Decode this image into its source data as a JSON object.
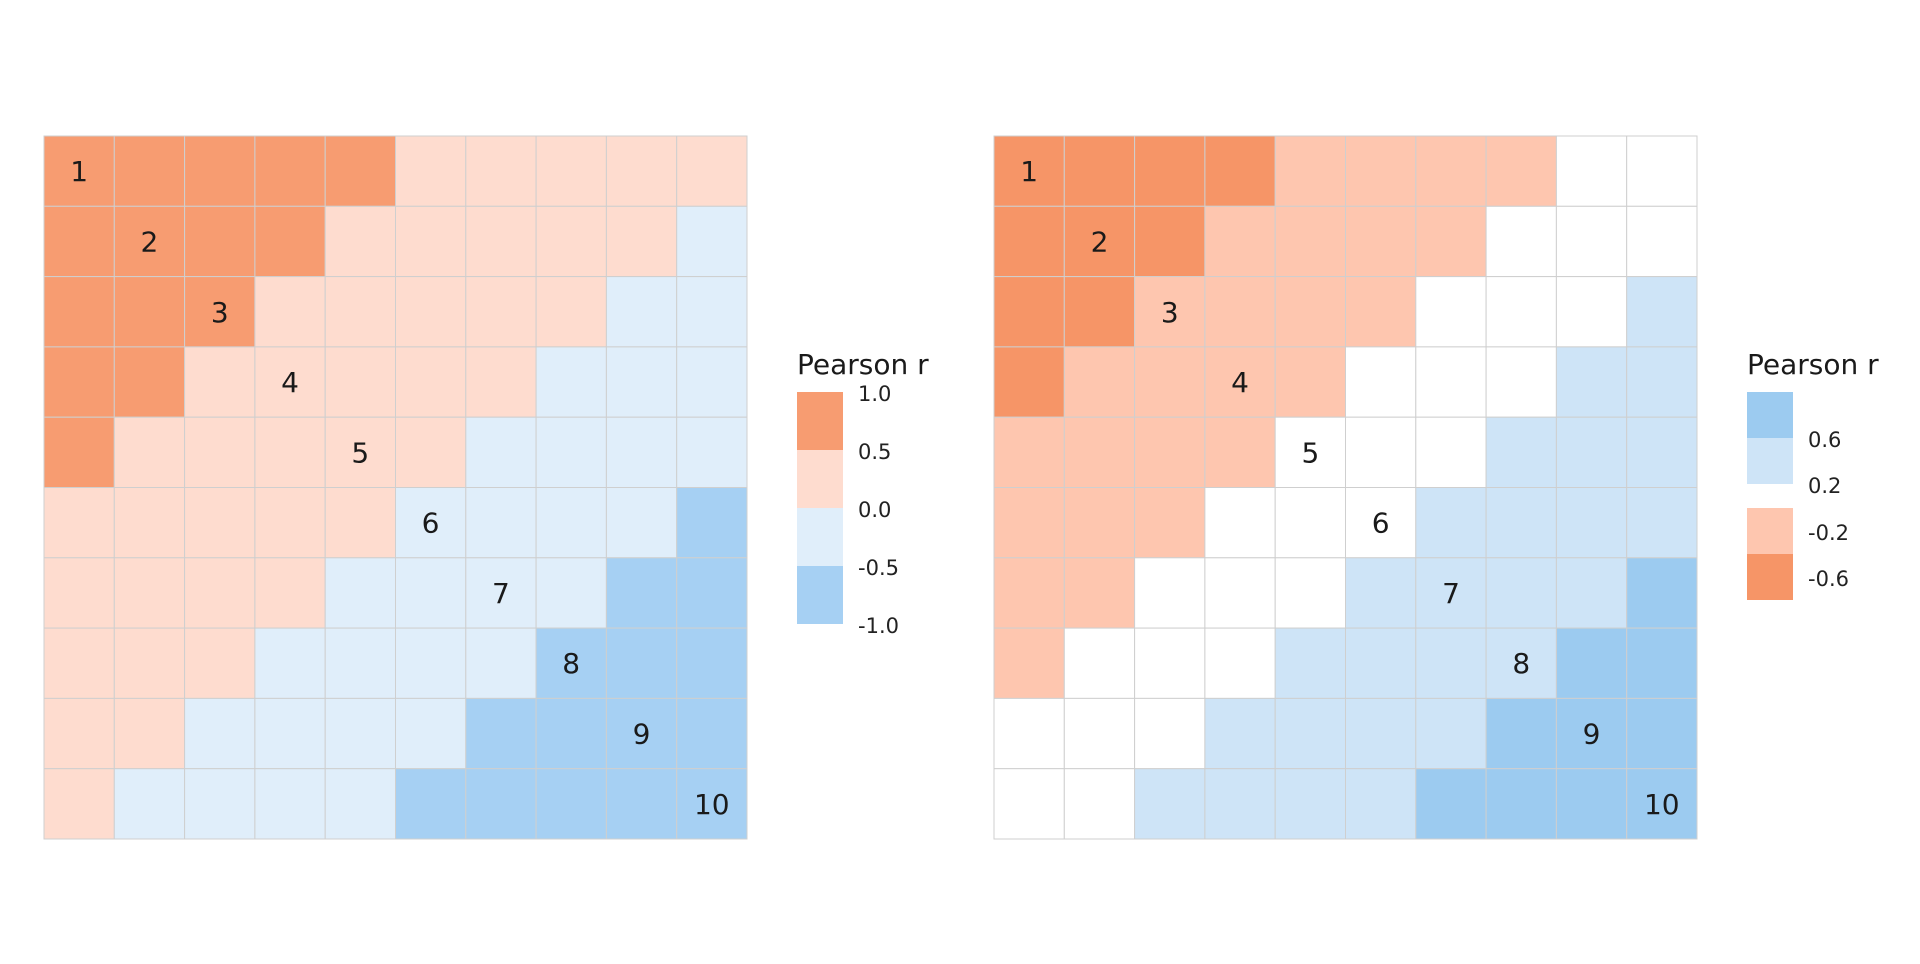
{
  "chart_data": [
    {
      "type": "heatmap",
      "title": "",
      "xlabel": "",
      "ylabel": "",
      "diagonal_labels": [
        "1",
        "2",
        "3",
        "4",
        "5",
        "6",
        "7",
        "8",
        "9",
        "10"
      ],
      "legend": {
        "title": "Pearson r",
        "labels": [
          "1.0",
          "0.5",
          "0.0",
          "-0.5",
          "-1.0"
        ],
        "bins": [
          {
            "range": "0.5 to 1.0",
            "color": "#F79C71"
          },
          {
            "range": "0.0 to 0.5",
            "color": "#FEDCCF"
          },
          {
            "range": "-0.5 to 0.0",
            "color": "#E0EEFA"
          },
          {
            "range": "-1.0 to -0.5",
            "color": "#A6D0F3"
          }
        ]
      },
      "matrix": [
        [
          0,
          0,
          0,
          0,
          0,
          1,
          1,
          1,
          1,
          1
        ],
        [
          0,
          0,
          0,
          0,
          1,
          1,
          1,
          1,
          1,
          2
        ],
        [
          0,
          0,
          0,
          1,
          1,
          1,
          1,
          1,
          2,
          2
        ],
        [
          0,
          0,
          1,
          1,
          1,
          1,
          1,
          2,
          2,
          2
        ],
        [
          0,
          1,
          1,
          1,
          1,
          1,
          2,
          2,
          2,
          2
        ],
        [
          1,
          1,
          1,
          1,
          1,
          2,
          2,
          2,
          2,
          3
        ],
        [
          1,
          1,
          1,
          1,
          2,
          2,
          2,
          2,
          3,
          3
        ],
        [
          1,
          1,
          1,
          2,
          2,
          2,
          2,
          3,
          3,
          3
        ],
        [
          1,
          1,
          2,
          2,
          2,
          2,
          3,
          3,
          3,
          3
        ],
        [
          1,
          2,
          2,
          2,
          2,
          3,
          3,
          3,
          3,
          3
        ]
      ],
      "matrix_note": "values are bin indices 0..3 into legend.bins (0 = -1.0 to -0.5, 3 = 0.5 to 1.0)"
    },
    {
      "type": "heatmap",
      "title": "",
      "xlabel": "",
      "ylabel": "",
      "diagonal_labels": [
        "1",
        "2",
        "3",
        "4",
        "5",
        "6",
        "7",
        "8",
        "9",
        "10"
      ],
      "legend": {
        "title": "Pearson r",
        "labels": [
          "0.6",
          "0.2",
          "-0.2",
          "-0.6"
        ],
        "bins": [
          {
            "range": "above 0.6",
            "color": "#F69567"
          },
          {
            "range": "0.2 to 0.6",
            "color": "#FEC6AF"
          },
          {
            "range": "-0.2 to 0.2",
            "color": "#FFFFFF"
          },
          {
            "range": "-0.6 to -0.2",
            "color": "#CEE4F7"
          },
          {
            "range": "below -0.6",
            "color": "#9CCBF0"
          }
        ]
      },
      "matrix": [
        [
          0,
          0,
          0,
          0,
          1,
          1,
          1,
          1,
          2,
          2
        ],
        [
          0,
          0,
          0,
          1,
          1,
          1,
          1,
          2,
          2,
          2
        ],
        [
          0,
          0,
          1,
          1,
          1,
          1,
          2,
          2,
          2,
          3
        ],
        [
          0,
          1,
          1,
          1,
          1,
          2,
          2,
          2,
          3,
          3
        ],
        [
          1,
          1,
          1,
          1,
          2,
          2,
          2,
          3,
          3,
          3
        ],
        [
          1,
          1,
          1,
          2,
          2,
          2,
          3,
          3,
          3,
          3
        ],
        [
          1,
          1,
          2,
          2,
          2,
          3,
          3,
          3,
          3,
          4
        ],
        [
          1,
          2,
          2,
          2,
          3,
          3,
          3,
          3,
          4,
          4
        ],
        [
          2,
          2,
          2,
          3,
          3,
          3,
          3,
          4,
          4,
          4
        ],
        [
          2,
          2,
          3,
          3,
          3,
          3,
          4,
          4,
          4,
          4
        ]
      ],
      "matrix_note": "values are bin indices 0..4 into legend.bins (0 = below -0.6, 4 = above 0.6)"
    }
  ]
}
